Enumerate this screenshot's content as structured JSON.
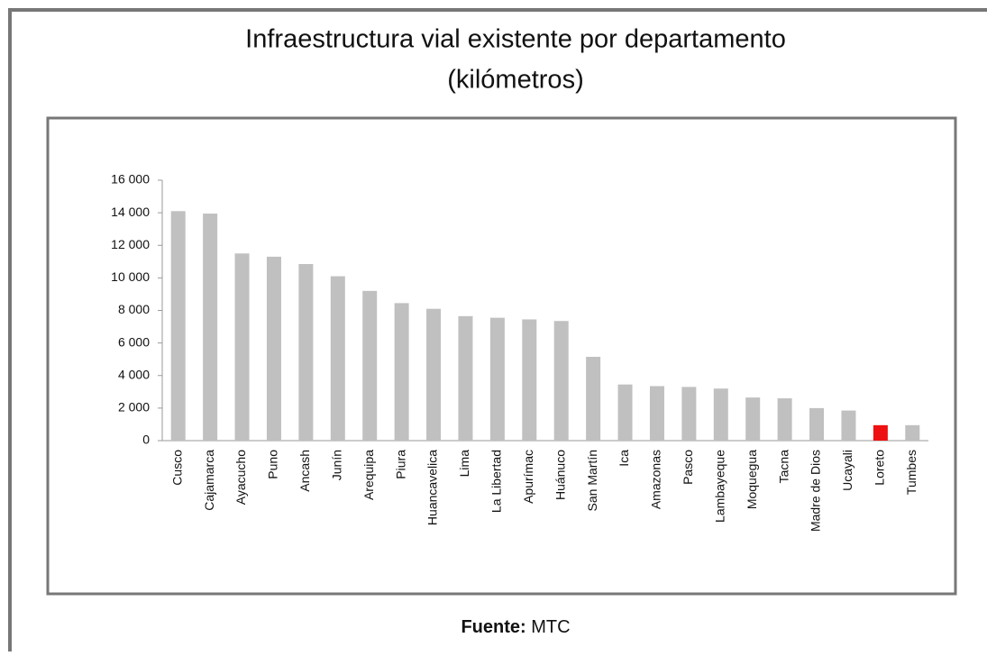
{
  "chart_data": {
    "type": "bar",
    "title": [
      "Infraestructura vial existente por departamento",
      "(kilómetros)"
    ],
    "source": {
      "label": "Fuente:",
      "text": "MTC"
    },
    "categories": [
      "Cusco",
      "Cajamarca",
      "Ayacucho",
      "Puno",
      "Ancash",
      "Junín",
      "Arequipa",
      "Piura",
      "Huancavelica",
      "Lima",
      "La Libertad",
      "Apurímac",
      "Huánuco",
      "San Martín",
      "Ica",
      "Amazonas",
      "Pasco",
      "Lambayeque",
      "Moquegua",
      "Tacna",
      "Madre de Dios",
      "Ucayali",
      "Loreto",
      "Tumbes"
    ],
    "values": [
      14100,
      13950,
      11500,
      11300,
      10850,
      10100,
      9200,
      8450,
      8100,
      7650,
      7550,
      7450,
      7350,
      5150,
      3450,
      3350,
      3300,
      3200,
      2650,
      2600,
      2000,
      1850,
      950,
      950
    ],
    "colors": [
      "#c0c0c0",
      "#c0c0c0",
      "#c0c0c0",
      "#c0c0c0",
      "#c0c0c0",
      "#c0c0c0",
      "#c0c0c0",
      "#c0c0c0",
      "#c0c0c0",
      "#c0c0c0",
      "#c0c0c0",
      "#c0c0c0",
      "#c0c0c0",
      "#c0c0c0",
      "#c0c0c0",
      "#c0c0c0",
      "#c0c0c0",
      "#c0c0c0",
      "#c0c0c0",
      "#c0c0c0",
      "#c0c0c0",
      "#c0c0c0",
      "#ee1111",
      "#c0c0c0"
    ],
    "ylim": [
      0,
      16000
    ],
    "yticks": [
      0,
      {
        "value": 2000,
        "label": "2 000"
      },
      {
        "value": 4000,
        "label": "4 000"
      },
      {
        "value": 6000,
        "label": "6 000"
      },
      {
        "value": 8000,
        "label": "8 000"
      },
      {
        "value": 10000,
        "label": "10 000"
      },
      {
        "value": 12000,
        "label": "12 000"
      },
      {
        "value": 14000,
        "label": "14 000"
      },
      {
        "value": 16000,
        "label": "16 000"
      }
    ],
    "grid": false
  }
}
